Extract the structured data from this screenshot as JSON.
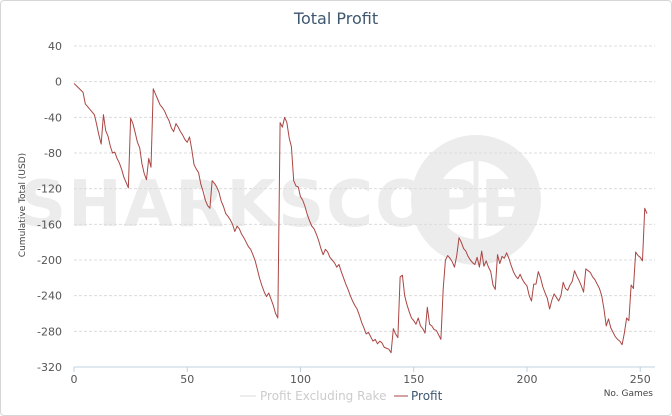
{
  "chart_data": {
    "type": "line",
    "title": "Total Profit",
    "xlabel": "No. Games",
    "ylabel": "Cumulative Total (USD)",
    "xlim": [
      0,
      253
    ],
    "ylim": [
      -320,
      40
    ],
    "x_ticks": [
      0,
      50,
      100,
      150,
      200,
      250
    ],
    "y_ticks": [
      40,
      0,
      -40,
      -80,
      -120,
      -160,
      -200,
      -240,
      -280,
      -320
    ],
    "grid": true,
    "watermark": "SHARKSCOPE",
    "legend": {
      "position": "bottom-center",
      "entries": [
        "Profit Excluding Rake",
        "Profit"
      ]
    },
    "series": [
      {
        "name": "Profit Excluding Rake",
        "color": "#d9d9d9",
        "visible": false,
        "points": []
      },
      {
        "name": "Profit",
        "color": "#aa4643",
        "points": [
          [
            0,
            -2
          ],
          [
            2,
            -7
          ],
          [
            4,
            -12
          ],
          [
            5,
            -25
          ],
          [
            7,
            -31
          ],
          [
            9,
            -37
          ],
          [
            10,
            -48
          ],
          [
            11,
            -60
          ],
          [
            12,
            -70
          ],
          [
            13,
            -37
          ],
          [
            14,
            -55
          ],
          [
            15,
            -61
          ],
          [
            16,
            -72
          ],
          [
            17,
            -80
          ],
          [
            18,
            -79
          ],
          [
            19,
            -86
          ],
          [
            20,
            -91
          ],
          [
            21,
            -98
          ],
          [
            22,
            -107
          ],
          [
            23,
            -113
          ],
          [
            24,
            -119
          ],
          [
            25,
            -41
          ],
          [
            26,
            -47
          ],
          [
            27,
            -57
          ],
          [
            28,
            -68
          ],
          [
            29,
            -74
          ],
          [
            30,
            -92
          ],
          [
            31,
            -103
          ],
          [
            32,
            -110
          ],
          [
            33,
            -86
          ],
          [
            34,
            -96
          ],
          [
            35,
            -8
          ],
          [
            36,
            -14
          ],
          [
            37,
            -20
          ],
          [
            38,
            -26
          ],
          [
            39,
            -29
          ],
          [
            40,
            -33
          ],
          [
            41,
            -39
          ],
          [
            42,
            -44
          ],
          [
            43,
            -52
          ],
          [
            44,
            -56
          ],
          [
            45,
            -47
          ],
          [
            46,
            -51
          ],
          [
            47,
            -56
          ],
          [
            48,
            -60
          ],
          [
            49,
            -65
          ],
          [
            50,
            -68
          ],
          [
            51,
            -62
          ],
          [
            52,
            -76
          ],
          [
            53,
            -93
          ],
          [
            54,
            -98
          ],
          [
            55,
            -102
          ],
          [
            56,
            -115
          ],
          [
            57,
            -123
          ],
          [
            58,
            -133
          ],
          [
            59,
            -139
          ],
          [
            60,
            -142
          ],
          [
            61,
            -111
          ],
          [
            62,
            -114
          ],
          [
            63,
            -118
          ],
          [
            64,
            -124
          ],
          [
            65,
            -134
          ],
          [
            66,
            -140
          ],
          [
            67,
            -148
          ],
          [
            68,
            -151
          ],
          [
            69,
            -155
          ],
          [
            70,
            -160
          ],
          [
            71,
            -168
          ],
          [
            72,
            -162
          ],
          [
            73,
            -165
          ],
          [
            74,
            -171
          ],
          [
            75,
            -175
          ],
          [
            76,
            -180
          ],
          [
            77,
            -185
          ],
          [
            78,
            -188
          ],
          [
            79,
            -194
          ],
          [
            80,
            -201
          ],
          [
            81,
            -211
          ],
          [
            82,
            -221
          ],
          [
            83,
            -229
          ],
          [
            84,
            -236
          ],
          [
            85,
            -241
          ],
          [
            86,
            -237
          ],
          [
            87,
            -244
          ],
          [
            88,
            -251
          ],
          [
            89,
            -260
          ],
          [
            90,
            -265
          ],
          [
            91,
            -46
          ],
          [
            92,
            -51
          ],
          [
            93,
            -40
          ],
          [
            94,
            -46
          ],
          [
            95,
            -63
          ],
          [
            96,
            -73
          ],
          [
            97,
            -111
          ],
          [
            98,
            -117
          ],
          [
            99,
            -118
          ],
          [
            100,
            -129
          ],
          [
            101,
            -133
          ],
          [
            102,
            -140
          ],
          [
            103,
            -149
          ],
          [
            104,
            -156
          ],
          [
            105,
            -162
          ],
          [
            106,
            -165
          ],
          [
            107,
            -171
          ],
          [
            108,
            -178
          ],
          [
            109,
            -187
          ],
          [
            110,
            -194
          ],
          [
            111,
            -188
          ],
          [
            112,
            -191
          ],
          [
            113,
            -197
          ],
          [
            114,
            -200
          ],
          [
            115,
            -203
          ],
          [
            116,
            -208
          ],
          [
            117,
            -205
          ],
          [
            118,
            -213
          ],
          [
            119,
            -220
          ],
          [
            120,
            -227
          ],
          [
            121,
            -233
          ],
          [
            122,
            -240
          ],
          [
            123,
            -246
          ],
          [
            124,
            -251
          ],
          [
            125,
            -255
          ],
          [
            126,
            -262
          ],
          [
            127,
            -270
          ],
          [
            128,
            -276
          ],
          [
            129,
            -283
          ],
          [
            130,
            -281
          ],
          [
            131,
            -286
          ],
          [
            132,
            -291
          ],
          [
            133,
            -289
          ],
          [
            134,
            -294
          ],
          [
            135,
            -291
          ],
          [
            136,
            -293
          ],
          [
            137,
            -298
          ],
          [
            138,
            -299
          ],
          [
            139,
            -300
          ],
          [
            140,
            -304
          ],
          [
            141,
            -277
          ],
          [
            142,
            -283
          ],
          [
            143,
            -287
          ],
          [
            144,
            -219
          ],
          [
            145,
            -217
          ],
          [
            146,
            -240
          ],
          [
            147,
            -250
          ],
          [
            148,
            -258
          ],
          [
            149,
            -265
          ],
          [
            150,
            -268
          ],
          [
            151,
            -272
          ],
          [
            152,
            -265
          ],
          [
            153,
            -274
          ],
          [
            154,
            -277
          ],
          [
            155,
            -282
          ],
          [
            156,
            -253
          ],
          [
            157,
            -272
          ],
          [
            158,
            -274
          ],
          [
            159,
            -278
          ],
          [
            160,
            -279
          ],
          [
            161,
            -284
          ],
          [
            162,
            -289
          ],
          [
            163,
            -233
          ],
          [
            164,
            -200
          ],
          [
            165,
            -195
          ],
          [
            166,
            -198
          ],
          [
            167,
            -202
          ],
          [
            168,
            -208
          ],
          [
            169,
            -195
          ],
          [
            170,
            -175
          ],
          [
            171,
            -180
          ],
          [
            172,
            -187
          ],
          [
            173,
            -190
          ],
          [
            174,
            -196
          ],
          [
            175,
            -200
          ],
          [
            176,
            -203
          ],
          [
            177,
            -205
          ],
          [
            178,
            -197
          ],
          [
            179,
            -208
          ],
          [
            180,
            -190
          ],
          [
            181,
            -207
          ],
          [
            182,
            -201
          ],
          [
            183,
            -208
          ],
          [
            184,
            -213
          ],
          [
            185,
            -228
          ],
          [
            186,
            -233
          ],
          [
            187,
            -194
          ],
          [
            188,
            -204
          ],
          [
            189,
            -196
          ],
          [
            190,
            -198
          ],
          [
            191,
            -192
          ],
          [
            192,
            -198
          ],
          [
            193,
            -206
          ],
          [
            194,
            -213
          ],
          [
            195,
            -218
          ],
          [
            196,
            -221
          ],
          [
            197,
            -216
          ],
          [
            198,
            -222
          ],
          [
            199,
            -226
          ],
          [
            200,
            -229
          ],
          [
            201,
            -240
          ],
          [
            202,
            -246
          ],
          [
            203,
            -227
          ],
          [
            204,
            -227
          ],
          [
            205,
            -213
          ],
          [
            206,
            -220
          ],
          [
            207,
            -230
          ],
          [
            208,
            -237
          ],
          [
            209,
            -243
          ],
          [
            210,
            -255
          ],
          [
            211,
            -245
          ],
          [
            212,
            -238
          ],
          [
            213,
            -242
          ],
          [
            214,
            -246
          ],
          [
            215,
            -240
          ],
          [
            216,
            -225
          ],
          [
            217,
            -232
          ],
          [
            218,
            -234
          ],
          [
            219,
            -228
          ],
          [
            220,
            -224
          ],
          [
            221,
            -212
          ],
          [
            222,
            -218
          ],
          [
            223,
            -223
          ],
          [
            224,
            -229
          ],
          [
            225,
            -236
          ],
          [
            226,
            -210
          ],
          [
            227,
            -212
          ],
          [
            228,
            -214
          ],
          [
            229,
            -219
          ],
          [
            230,
            -222
          ],
          [
            231,
            -227
          ],
          [
            232,
            -232
          ],
          [
            233,
            -240
          ],
          [
            234,
            -255
          ],
          [
            235,
            -274
          ],
          [
            236,
            -266
          ],
          [
            237,
            -276
          ],
          [
            238,
            -281
          ],
          [
            239,
            -286
          ],
          [
            240,
            -289
          ],
          [
            241,
            -291
          ],
          [
            242,
            -295
          ],
          [
            243,
            -282
          ],
          [
            244,
            -265
          ],
          [
            245,
            -268
          ],
          [
            246,
            -228
          ],
          [
            247,
            -232
          ],
          [
            248,
            -191
          ],
          [
            249,
            -195
          ],
          [
            250,
            -197
          ],
          [
            251,
            -201
          ],
          [
            252,
            -142
          ],
          [
            253,
            -148
          ]
        ]
      }
    ]
  }
}
